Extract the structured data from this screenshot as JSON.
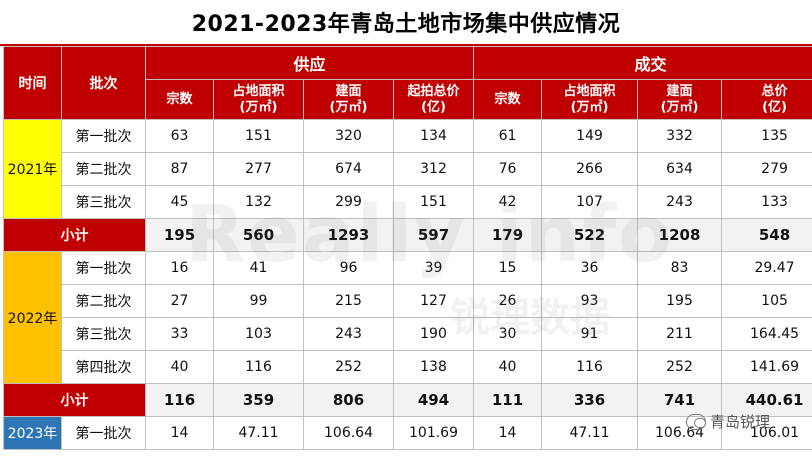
{
  "title": "2021-2023年青岛土地市场集中供应情况",
  "headers": {
    "time": "时间",
    "batch": "批次",
    "supply": "供应",
    "deal": "成交",
    "supply_cols": [
      "宗数",
      "占地面积\n(万㎡)",
      "建面\n(万㎡)",
      "起拍总价\n(亿)"
    ],
    "deal_cols": [
      "宗数",
      "占地面积\n(万㎡)",
      "建面\n(万㎡)",
      "总价\n(亿)"
    ]
  },
  "years": [
    "2021年",
    "2022年",
    "2023年"
  ],
  "subtotal_label": "小计",
  "rows_2021": [
    {
      "batch": "第一批次",
      "v": [
        "63",
        "151",
        "320",
        "134",
        "61",
        "149",
        "332",
        "135"
      ]
    },
    {
      "batch": "第二批次",
      "v": [
        "87",
        "277",
        "674",
        "312",
        "76",
        "266",
        "634",
        "279"
      ]
    },
    {
      "batch": "第三批次",
      "v": [
        "45",
        "132",
        "299",
        "151",
        "42",
        "107",
        "243",
        "133"
      ]
    }
  ],
  "subtotal_2021": [
    "195",
    "560",
    "1293",
    "597",
    "179",
    "522",
    "1208",
    "548"
  ],
  "rows_2022": [
    {
      "batch": "第一批次",
      "v": [
        "16",
        "41",
        "96",
        "39",
        "15",
        "36",
        "83",
        "29.47"
      ]
    },
    {
      "batch": "第二批次",
      "v": [
        "27",
        "99",
        "215",
        "127",
        "26",
        "93",
        "195",
        "105"
      ]
    },
    {
      "batch": "第三批次",
      "v": [
        "33",
        "103",
        "243",
        "190",
        "30",
        "91",
        "211",
        "164.45"
      ]
    },
    {
      "batch": "第四批次",
      "v": [
        "40",
        "116",
        "252",
        "138",
        "40",
        "116",
        "252",
        "141.69"
      ]
    }
  ],
  "subtotal_2022": [
    "116",
    "359",
    "806",
    "494",
    "111",
    "336",
    "741",
    "440.61"
  ],
  "rows_2023": [
    {
      "batch": "第一批次",
      "v": [
        "14",
        "47.11",
        "106.64",
        "101.69",
        "14",
        "47.11",
        "106.64",
        "106.01"
      ]
    }
  ],
  "watermark": {
    "text": "Really info",
    "sub": "锐理数据"
  },
  "logo_text": "青岛锐理",
  "colors": {
    "header_red": "#c00000",
    "y2021": "#ffff00",
    "y2022": "#ffc000",
    "y2023": "#2e75b6"
  }
}
